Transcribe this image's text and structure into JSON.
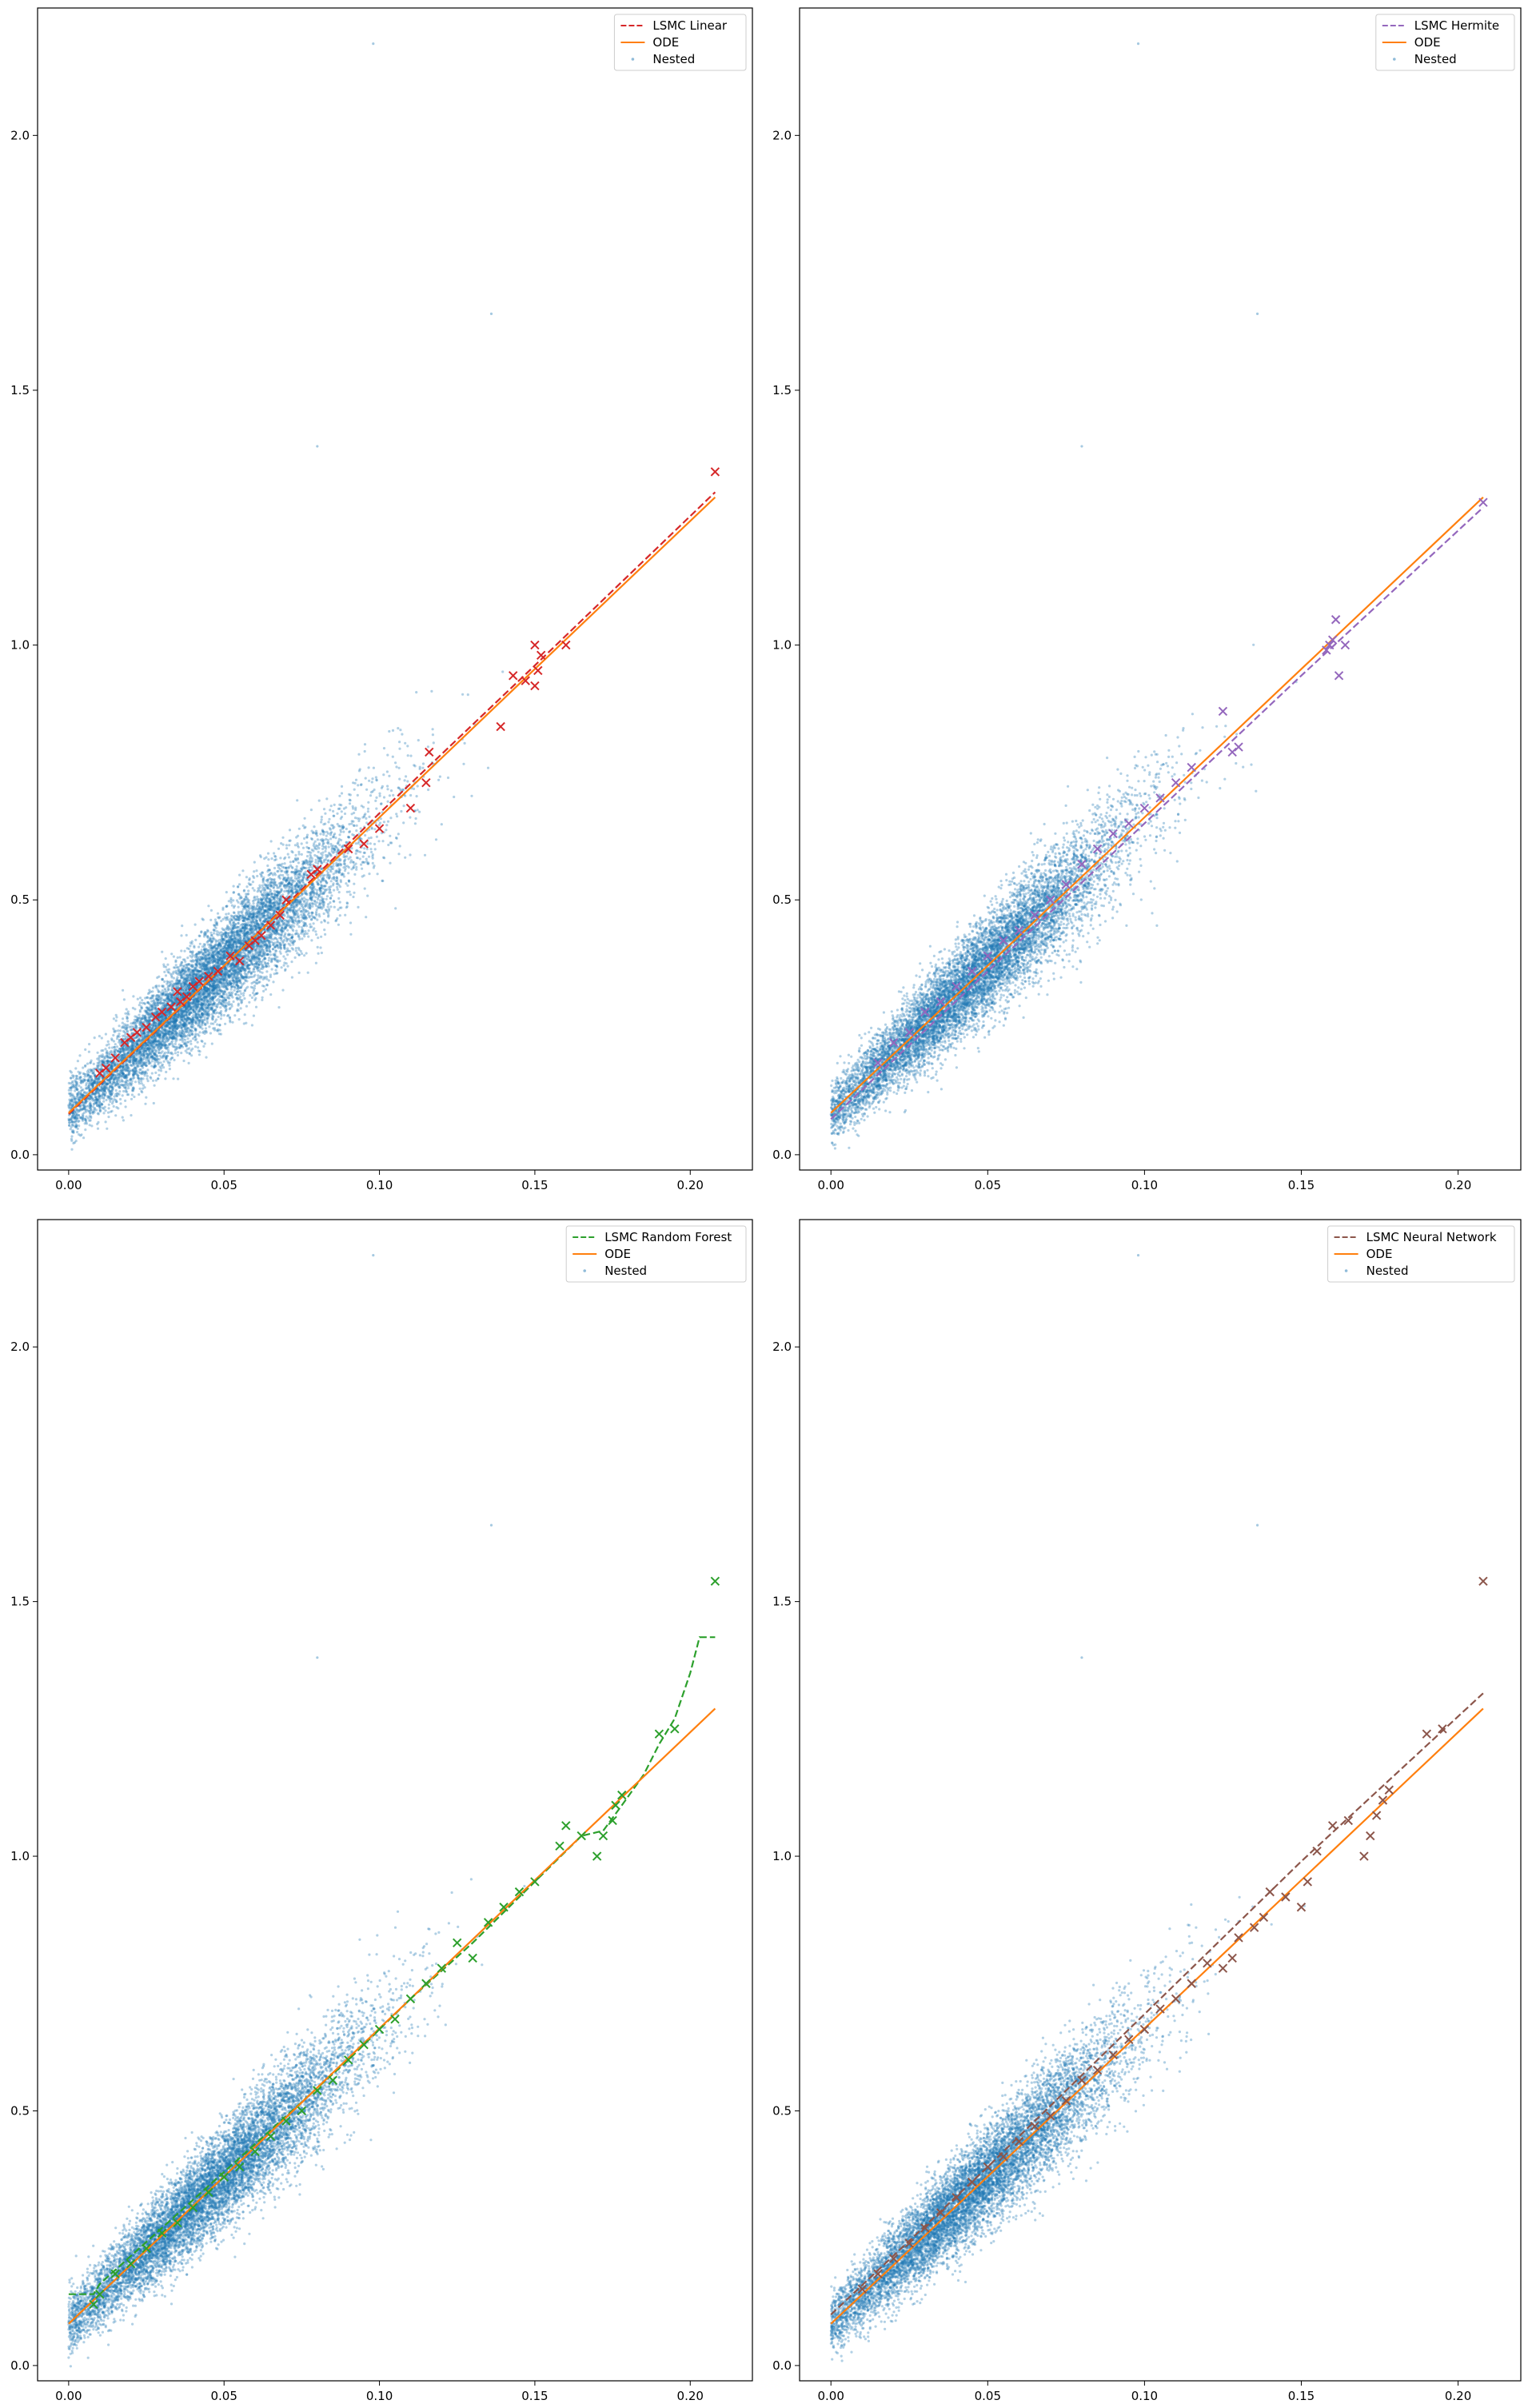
{
  "chart_data": [
    {
      "type": "scatter",
      "panel": "top-left",
      "xlim": [
        -0.01,
        0.22
      ],
      "ylim": [
        -0.03,
        2.25
      ],
      "x_ticks": [
        "0.00",
        "0.05",
        "0.10",
        "0.15",
        "0.20"
      ],
      "y_ticks": [
        "0.0",
        "0.5",
        "1.0",
        "1.5",
        "2.0"
      ],
      "legend": {
        "placement": "top-right",
        "entries": [
          "LSMC Linear",
          "ODE",
          "Nested"
        ]
      },
      "series": [
        {
          "name": "LSMC Linear",
          "kind": "dashed-line",
          "color": "#d62728",
          "x": [
            0.0,
            0.05,
            0.1,
            0.15,
            0.208
          ],
          "y": [
            0.08,
            0.37,
            0.67,
            0.96,
            1.3
          ]
        },
        {
          "name": "ODE",
          "kind": "line",
          "color": "#ff7f0e",
          "x": [
            0.0,
            0.05,
            0.1,
            0.15,
            0.208
          ],
          "y": [
            0.082,
            0.371,
            0.662,
            0.953,
            1.29
          ]
        },
        {
          "name": "Nested",
          "kind": "points",
          "color": "#1f77b4",
          "model": {
            "intercept": 0.082,
            "slope": 5.8,
            "x_range": [
              0.0,
              0.21
            ],
            "spread": 0.06
          }
        },
        {
          "name": "LSMC Linear",
          "kind": "x-markers",
          "color": "#d62728",
          "x": [
            0.208,
            0.15,
            0.152,
            0.143,
            0.147,
            0.151,
            0.15,
            0.139,
            0.16,
            0.116,
            0.115,
            0.11,
            0.1,
            0.095,
            0.09,
            0.08,
            0.078,
            0.07,
            0.068,
            0.065,
            0.062,
            0.06,
            0.058,
            0.055,
            0.052,
            0.048,
            0.045,
            0.042,
            0.04,
            0.038,
            0.036,
            0.035,
            0.033,
            0.03,
            0.028,
            0.025,
            0.022,
            0.02,
            0.018,
            0.015,
            0.012,
            0.01
          ],
          "y": [
            1.34,
            1.0,
            0.98,
            0.94,
            0.93,
            0.95,
            0.92,
            0.84,
            1.0,
            0.79,
            0.73,
            0.68,
            0.64,
            0.61,
            0.6,
            0.56,
            0.55,
            0.5,
            0.47,
            0.45,
            0.43,
            0.42,
            0.41,
            0.38,
            0.39,
            0.36,
            0.35,
            0.34,
            0.33,
            0.31,
            0.3,
            0.32,
            0.29,
            0.28,
            0.27,
            0.25,
            0.24,
            0.23,
            0.22,
            0.19,
            0.17,
            0.16
          ]
        }
      ]
    },
    {
      "type": "scatter",
      "panel": "top-right",
      "xlim": [
        -0.01,
        0.22
      ],
      "ylim": [
        -0.03,
        2.25
      ],
      "x_ticks": [
        "0.00",
        "0.05",
        "0.10",
        "0.15",
        "0.20"
      ],
      "y_ticks": [
        "0.0",
        "0.5",
        "1.0",
        "1.5",
        "2.0"
      ],
      "legend": {
        "placement": "top-right",
        "entries": [
          "LSMC Hermite",
          "ODE",
          "Nested"
        ]
      },
      "series": [
        {
          "name": "LSMC Hermite",
          "kind": "dashed-line",
          "color": "#9467bd",
          "x": [
            0.0,
            0.05,
            0.1,
            0.15,
            0.208
          ],
          "y": [
            0.07,
            0.36,
            0.65,
            0.94,
            1.27
          ]
        },
        {
          "name": "ODE",
          "kind": "line",
          "color": "#ff7f0e",
          "x": [
            0.0,
            0.05,
            0.1,
            0.15,
            0.208
          ],
          "y": [
            0.082,
            0.371,
            0.662,
            0.953,
            1.29
          ]
        },
        {
          "name": "Nested",
          "kind": "points",
          "color": "#1f77b4",
          "model": {
            "intercept": 0.082,
            "slope": 5.8,
            "x_range": [
              0.0,
              0.21
            ],
            "spread": 0.06
          }
        },
        {
          "name": "LSMC Hermite",
          "kind": "x-markers",
          "color": "#9467bd",
          "x": [
            0.208,
            0.16,
            0.158,
            0.161,
            0.159,
            0.164,
            0.162,
            0.125,
            0.13,
            0.128,
            0.115,
            0.11,
            0.105,
            0.1,
            0.095,
            0.09,
            0.085,
            0.08,
            0.075,
            0.07,
            0.065,
            0.06,
            0.055,
            0.05,
            0.045,
            0.04,
            0.035,
            0.03,
            0.025,
            0.02,
            0.015
          ],
          "y": [
            1.28,
            1.01,
            0.99,
            1.05,
            1.0,
            1.0,
            0.94,
            0.87,
            0.8,
            0.79,
            0.76,
            0.73,
            0.7,
            0.68,
            0.65,
            0.63,
            0.6,
            0.57,
            0.53,
            0.5,
            0.47,
            0.44,
            0.42,
            0.39,
            0.36,
            0.33,
            0.3,
            0.28,
            0.24,
            0.22,
            0.18
          ]
        }
      ]
    },
    {
      "type": "scatter",
      "panel": "bottom-left",
      "xlim": [
        -0.01,
        0.22
      ],
      "ylim": [
        -0.03,
        2.25
      ],
      "x_ticks": [
        "0.00",
        "0.05",
        "0.10",
        "0.15",
        "0.20"
      ],
      "y_ticks": [
        "0.0",
        "0.5",
        "1.0",
        "1.5",
        "2.0"
      ],
      "legend": {
        "placement": "top-right",
        "entries": [
          "LSMC Random Forest",
          "ODE",
          "Nested"
        ]
      },
      "series": [
        {
          "name": "LSMC Random Forest",
          "kind": "dashed-line",
          "color": "#2ca02c",
          "x": [
            0.0,
            0.008,
            0.01,
            0.03,
            0.05,
            0.07,
            0.09,
            0.11,
            0.13,
            0.15,
            0.165,
            0.172,
            0.178,
            0.185,
            0.19,
            0.195,
            0.2,
            0.203,
            0.208
          ],
          "y": [
            0.14,
            0.14,
            0.16,
            0.27,
            0.38,
            0.49,
            0.6,
            0.72,
            0.83,
            0.95,
            1.04,
            1.05,
            1.1,
            1.16,
            1.22,
            1.27,
            1.36,
            1.43,
            1.43
          ]
        },
        {
          "name": "ODE",
          "kind": "line",
          "color": "#ff7f0e",
          "x": [
            0.0,
            0.05,
            0.1,
            0.15,
            0.208
          ],
          "y": [
            0.082,
            0.371,
            0.662,
            0.953,
            1.29
          ]
        },
        {
          "name": "Nested",
          "kind": "points",
          "color": "#1f77b4",
          "model": {
            "intercept": 0.082,
            "slope": 5.8,
            "x_range": [
              0.0,
              0.21
            ],
            "spread": 0.06
          }
        },
        {
          "name": "LSMC Random Forest",
          "kind": "x-markers",
          "color": "#2ca02c",
          "x": [
            0.208,
            0.195,
            0.19,
            0.178,
            0.176,
            0.175,
            0.172,
            0.17,
            0.165,
            0.16,
            0.158,
            0.15,
            0.145,
            0.14,
            0.135,
            0.13,
            0.125,
            0.12,
            0.115,
            0.11,
            0.105,
            0.1,
            0.095,
            0.09,
            0.085,
            0.08,
            0.075,
            0.07,
            0.065,
            0.06,
            0.055,
            0.05,
            0.045,
            0.04,
            0.035,
            0.03,
            0.025,
            0.02,
            0.015,
            0.01,
            0.008
          ],
          "y": [
            1.54,
            1.25,
            1.24,
            1.12,
            1.1,
            1.07,
            1.04,
            1.0,
            1.04,
            1.06,
            1.02,
            0.95,
            0.93,
            0.9,
            0.87,
            0.8,
            0.83,
            0.78,
            0.75,
            0.72,
            0.68,
            0.66,
            0.63,
            0.6,
            0.56,
            0.54,
            0.5,
            0.48,
            0.45,
            0.42,
            0.39,
            0.37,
            0.34,
            0.31,
            0.28,
            0.26,
            0.23,
            0.2,
            0.18,
            0.14,
            0.12
          ]
        }
      ]
    },
    {
      "type": "scatter",
      "panel": "bottom-right",
      "xlim": [
        -0.01,
        0.22
      ],
      "ylim": [
        -0.03,
        2.25
      ],
      "x_ticks": [
        "0.00",
        "0.05",
        "0.10",
        "0.15",
        "0.20"
      ],
      "y_ticks": [
        "0.0",
        "0.5",
        "1.0",
        "1.5",
        "2.0"
      ],
      "legend": {
        "placement": "top-right",
        "entries": [
          "LSMC Neural Network",
          "ODE",
          "Nested"
        ]
      },
      "series": [
        {
          "name": "LSMC Neural Network",
          "kind": "dashed-line",
          "color": "#8c564b",
          "x": [
            0.0,
            0.05,
            0.1,
            0.15,
            0.208
          ],
          "y": [
            0.1,
            0.39,
            0.69,
            0.99,
            1.32
          ]
        },
        {
          "name": "ODE",
          "kind": "line",
          "color": "#ff7f0e",
          "x": [
            0.0,
            0.05,
            0.1,
            0.15,
            0.208
          ],
          "y": [
            0.082,
            0.371,
            0.662,
            0.953,
            1.29
          ]
        },
        {
          "name": "Nested",
          "kind": "points",
          "color": "#1f77b4",
          "model": {
            "intercept": 0.082,
            "slope": 5.8,
            "x_range": [
              0.0,
              0.21
            ],
            "spread": 0.06
          }
        },
        {
          "name": "LSMC Neural Network",
          "kind": "x-markers",
          "color": "#8c564b",
          "x": [
            0.208,
            0.195,
            0.19,
            0.178,
            0.176,
            0.174,
            0.172,
            0.17,
            0.165,
            0.16,
            0.155,
            0.152,
            0.15,
            0.145,
            0.14,
            0.138,
            0.135,
            0.13,
            0.128,
            0.125,
            0.12,
            0.115,
            0.11,
            0.105,
            0.1,
            0.095,
            0.09,
            0.085,
            0.08,
            0.075,
            0.07,
            0.065,
            0.06,
            0.055,
            0.05,
            0.045,
            0.04,
            0.035,
            0.03,
            0.025,
            0.02,
            0.015,
            0.01
          ],
          "y": [
            1.54,
            1.25,
            1.24,
            1.13,
            1.11,
            1.08,
            1.04,
            1.0,
            1.07,
            1.06,
            1.01,
            0.95,
            0.9,
            0.92,
            0.93,
            0.88,
            0.86,
            0.84,
            0.8,
            0.78,
            0.79,
            0.75,
            0.72,
            0.7,
            0.66,
            0.64,
            0.61,
            0.58,
            0.56,
            0.52,
            0.49,
            0.47,
            0.44,
            0.41,
            0.39,
            0.36,
            0.33,
            0.3,
            0.27,
            0.24,
            0.21,
            0.18,
            0.15
          ]
        }
      ]
    }
  ]
}
